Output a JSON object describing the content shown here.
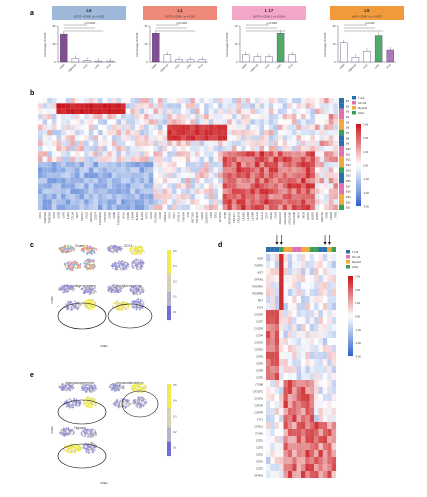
{
  "panels": {
    "a": "a",
    "b": "b",
    "c": "c",
    "d": "d",
    "e": "e"
  },
  "panel_a": {
    "titles": [
      {
        "line1": "L6",
        "line2": "(CD73⁺•CD66⁺) p = 0.002",
        "color": "#9db8d8"
      },
      {
        "line1": "L1",
        "line2": "(CD73⁺•CD66⁺) p = 0.042",
        "color": "#ef8a7a"
      },
      {
        "line1": "L 17",
        "line2": "(VISTA⁺•CD66⁺) p = 0.0014",
        "color": "#f4a6c8"
      },
      {
        "line1": "L5",
        "line2": "(Ki67⁺•CD66⁺) p = 0.0017",
        "color": "#f19a3c"
      }
    ],
    "ylabel": "Percentage of CD45⁺",
    "categories": [
      "GBM",
      "GBM-LD",
      "HCC",
      "CRC",
      "PCA"
    ],
    "sig_labels": [
      "p<0.0001",
      "p=0.0001",
      "p<0.0001",
      "p=0.002",
      "p=0.041"
    ]
  },
  "chart_data": [
    {
      "type": "bar",
      "categories": [
        "GBM",
        "GBM-LD",
        "HCC",
        "CRC",
        "PCA"
      ],
      "series": [
        {
          "values": [
            62,
            8,
            3,
            2,
            2
          ]
        },
        {
          "values": [
            24,
            6,
            2,
            2,
            2
          ]
        },
        {
          "values": [
            4,
            3,
            3,
            16,
            4
          ]
        },
        {
          "values": [
            16,
            4,
            9,
            22,
            10
          ]
        }
      ],
      "ylim": [
        [
          0,
          80
        ],
        [
          0,
          30
        ],
        [
          0,
          20
        ],
        [
          0,
          30
        ]
      ],
      "colors": [
        "#6b2f7b",
        "#6b2f7b",
        "#2e9c4a",
        "#9e5fb0"
      ]
    },
    {
      "type": "heatmap",
      "panel": "b",
      "row_labels": [
        "B1",
        "B2",
        "B3",
        "B4",
        "B5",
        "B6",
        "B7",
        "B8",
        "B9",
        "B10",
        "B11",
        "B12",
        "B13",
        "B14",
        "B15",
        "B16",
        "B17",
        "B18",
        "B19",
        "B20",
        "B21"
      ],
      "col_labels": [
        "CD11",
        "TNFRSF9",
        "TNFRSF4",
        "ICOS",
        "CD28",
        "GITR",
        "IL2RA",
        "CTLA4",
        "TIGIT",
        "PDCD1",
        "LAG3",
        "HAVCR2",
        "CD274",
        "TNFRSF18",
        "TNFSF4",
        "CD80",
        "CD86",
        "TNFRSF14",
        "BTLA",
        "CD160",
        "CD244",
        "KLRD1",
        "KLRK1",
        "NCR1",
        "NCR3",
        "FCGR3A",
        "CD40",
        "CD40LG",
        "CD70",
        "CD27",
        "ICOSLG",
        "TNFSF9",
        "PVR",
        "NECTIN2",
        "TNFSF18",
        "CD200",
        "CD200R1",
        "VSIR",
        "IDO1",
        "ENTPD1",
        "NT5E",
        "ADORA2A",
        "SIGLEC7",
        "SIGLEC9",
        "LILRB1",
        "LILRB2",
        "LILRB4",
        "HLA-E",
        "HLA-G",
        "CD47",
        "SIRPA",
        "CD24",
        "SIGLEC10",
        "CEACAM1",
        "CEACAM5",
        "CEACAM6",
        "MICA",
        "MICB",
        "ULBP1",
        "ULBP2",
        "ULBP3",
        "RAET1E",
        "CD96",
        "CD226",
        "TIM3"
      ],
      "colorbar_ticks": [
        "3.00",
        "2.00",
        "1.00",
        "0.00",
        "-1.00",
        "-2.00",
        "-3.00"
      ],
      "legend": [
        "T cell",
        "NK cell",
        "Myeloid",
        "Other"
      ],
      "legend_colors": [
        "#2a6fb0",
        "#e46fb0",
        "#f2a93b",
        "#3aa055"
      ]
    },
    {
      "type": "heatmap",
      "panel": "d",
      "row_labels": [
        "KDR",
        "FGFR2",
        "MST",
        "GFRA3",
        "PDGFRA",
        "PDGFRB",
        "RET",
        "FLT4",
        "CXCR4",
        "CCR7",
        "CXCR5",
        "CCR4",
        "CXCR3",
        "CCR10",
        "CCR5",
        "CCR6",
        "CCR8",
        "CCR9",
        "ITGB8",
        "CX3CR1",
        "CXCR1",
        "CSF1R",
        "CSF3R",
        "FLT1",
        "CCRL2",
        "ITGAV",
        "CCR1",
        "CCR3",
        "CCR2",
        "XCR1",
        "CCR2",
        "GFRA3"
      ],
      "colorbar_ticks": [
        "3.00",
        "2.00",
        "1.00",
        "0.00",
        "-1.00",
        "-2.00",
        "-3.00"
      ],
      "legend": [
        "T cell",
        "NK cell",
        "Myeloid",
        "Other"
      ],
      "legend_colors": [
        "#2a6fb0",
        "#e46fb0",
        "#f2a93b",
        "#3aa055"
      ]
    }
  ],
  "panel_c": {
    "titles": [
      "Cluster",
      "CD73",
      "Macrophage signature",
      "Microglial signature"
    ],
    "xlabel": "tSNE1",
    "ylabel": "tSNE2",
    "colorbar_ticks": [
      "0.5",
      "0.4",
      "0.3",
      "0.2",
      "0.1"
    ]
  },
  "panel_e": {
    "titles": [
      "Immunosuppressive",
      "Immunostimulatory",
      "Hypoxia"
    ],
    "xlabel": "tSNE1",
    "ylabel": "tSNE2",
    "colorbar_ticks": [
      "0.5",
      "0.4",
      "0.3",
      "0.2",
      "0.1"
    ]
  },
  "panel_b_legend_labels": [
    "T cell",
    "NK cell",
    "Myeloid",
    "Other"
  ]
}
